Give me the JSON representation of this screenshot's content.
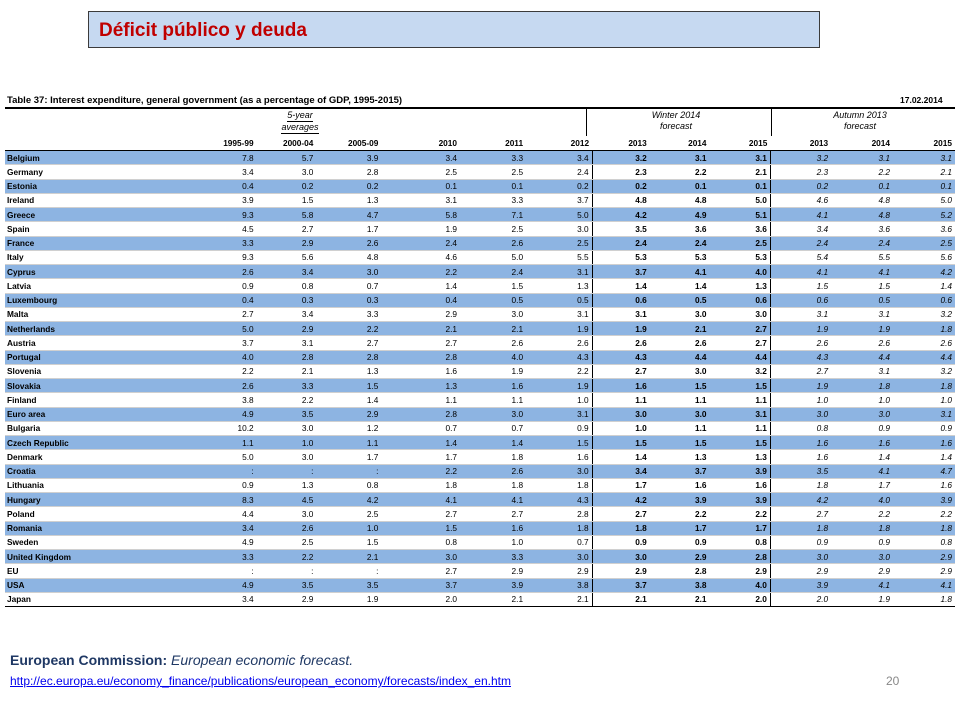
{
  "title": "Déficit público y deuda",
  "table": {
    "caption": "Table 37:   Interest expenditure, general government (as a percentage of GDP, 1995-2015)",
    "date": "17.02.2014",
    "group_avg": [
      "5-year",
      "averages"
    ],
    "group_winter": [
      "Winter 2014",
      "forecast"
    ],
    "group_autumn": [
      "Autumn 2013",
      "forecast"
    ],
    "columns": [
      "1995-99",
      "2000-04",
      "2005-09",
      "2010",
      "2011",
      "2012",
      "2013",
      "2014",
      "2015",
      "2013",
      "2014",
      "2015"
    ],
    "rows": [
      {
        "name": "Belgium",
        "v": [
          "7.8",
          "5.7",
          "3.9",
          "3.4",
          "3.3",
          "3.4",
          "3.2",
          "3.1",
          "3.1",
          "3.2",
          "3.1",
          "3.1"
        ]
      },
      {
        "name": "Germany",
        "v": [
          "3.4",
          "3.0",
          "2.8",
          "2.5",
          "2.5",
          "2.4",
          "2.3",
          "2.2",
          "2.1",
          "2.3",
          "2.2",
          "2.1"
        ]
      },
      {
        "name": "Estonia",
        "v": [
          "0.4",
          "0.2",
          "0.2",
          "0.1",
          "0.1",
          "0.2",
          "0.2",
          "0.1",
          "0.1",
          "0.2",
          "0.1",
          "0.1"
        ]
      },
      {
        "name": "Ireland",
        "v": [
          "3.9",
          "1.5",
          "1.3",
          "3.1",
          "3.3",
          "3.7",
          "4.8",
          "4.8",
          "5.0",
          "4.6",
          "4.8",
          "5.0"
        ]
      },
      {
        "name": "Greece",
        "v": [
          "9.3",
          "5.8",
          "4.7",
          "5.8",
          "7.1",
          "5.0",
          "4.2",
          "4.9",
          "5.1",
          "4.1",
          "4.8",
          "5.2"
        ]
      },
      {
        "name": "Spain",
        "v": [
          "4.5",
          "2.7",
          "1.7",
          "1.9",
          "2.5",
          "3.0",
          "3.5",
          "3.6",
          "3.6",
          "3.4",
          "3.6",
          "3.6"
        ]
      },
      {
        "name": "France",
        "v": [
          "3.3",
          "2.9",
          "2.6",
          "2.4",
          "2.6",
          "2.5",
          "2.4",
          "2.4",
          "2.5",
          "2.4",
          "2.4",
          "2.5"
        ]
      },
      {
        "name": "Italy",
        "v": [
          "9.3",
          "5.6",
          "4.8",
          "4.6",
          "5.0",
          "5.5",
          "5.3",
          "5.3",
          "5.3",
          "5.4",
          "5.5",
          "5.6"
        ]
      },
      {
        "name": "Cyprus",
        "v": [
          "2.6",
          "3.4",
          "3.0",
          "2.2",
          "2.4",
          "3.1",
          "3.7",
          "4.1",
          "4.0",
          "4.1",
          "4.1",
          "4.2"
        ]
      },
      {
        "name": "Latvia",
        "v": [
          "0.9",
          "0.8",
          "0.7",
          "1.4",
          "1.5",
          "1.3",
          "1.4",
          "1.4",
          "1.3",
          "1.5",
          "1.5",
          "1.4"
        ]
      },
      {
        "name": "Luxembourg",
        "v": [
          "0.4",
          "0.3",
          "0.3",
          "0.4",
          "0.5",
          "0.5",
          "0.6",
          "0.5",
          "0.6",
          "0.6",
          "0.5",
          "0.6"
        ]
      },
      {
        "name": "Malta",
        "v": [
          "2.7",
          "3.4",
          "3.3",
          "2.9",
          "3.0",
          "3.1",
          "3.1",
          "3.0",
          "3.0",
          "3.1",
          "3.1",
          "3.2"
        ]
      },
      {
        "name": "Netherlands",
        "v": [
          "5.0",
          "2.9",
          "2.2",
          "2.1",
          "2.1",
          "1.9",
          "1.9",
          "2.1",
          "2.7",
          "1.9",
          "1.9",
          "1.8"
        ]
      },
      {
        "name": "Austria",
        "v": [
          "3.7",
          "3.1",
          "2.7",
          "2.7",
          "2.6",
          "2.6",
          "2.6",
          "2.6",
          "2.7",
          "2.6",
          "2.6",
          "2.6"
        ]
      },
      {
        "name": "Portugal",
        "v": [
          "4.0",
          "2.8",
          "2.8",
          "2.8",
          "4.0",
          "4.3",
          "4.3",
          "4.4",
          "4.4",
          "4.3",
          "4.4",
          "4.4"
        ]
      },
      {
        "name": "Slovenia",
        "v": [
          "2.2",
          "2.1",
          "1.3",
          "1.6",
          "1.9",
          "2.2",
          "2.7",
          "3.0",
          "3.2",
          "2.7",
          "3.1",
          "3.2"
        ]
      },
      {
        "name": "Slovakia",
        "v": [
          "2.6",
          "3.3",
          "1.5",
          "1.3",
          "1.6",
          "1.9",
          "1.6",
          "1.5",
          "1.5",
          "1.9",
          "1.8",
          "1.8"
        ]
      },
      {
        "name": "Finland",
        "v": [
          "3.8",
          "2.2",
          "1.4",
          "1.1",
          "1.1",
          "1.0",
          "1.1",
          "1.1",
          "1.1",
          "1.0",
          "1.0",
          "1.0"
        ]
      },
      {
        "name": "Euro area",
        "v": [
          "4.9",
          "3.5",
          "2.9",
          "2.8",
          "3.0",
          "3.1",
          "3.0",
          "3.0",
          "3.1",
          "3.0",
          "3.0",
          "3.1"
        ]
      },
      {
        "name": "Bulgaria",
        "v": [
          "10.2",
          "3.0",
          "1.2",
          "0.7",
          "0.7",
          "0.9",
          "1.0",
          "1.1",
          "1.1",
          "0.8",
          "0.9",
          "0.9"
        ]
      },
      {
        "name": "Czech Republic",
        "v": [
          "1.1",
          "1.0",
          "1.1",
          "1.4",
          "1.4",
          "1.5",
          "1.5",
          "1.5",
          "1.5",
          "1.6",
          "1.6",
          "1.6"
        ]
      },
      {
        "name": "Denmark",
        "v": [
          "5.0",
          "3.0",
          "1.7",
          "1.7",
          "1.8",
          "1.6",
          "1.4",
          "1.3",
          "1.3",
          "1.6",
          "1.4",
          "1.4"
        ]
      },
      {
        "name": "Croatia",
        "v": [
          ":",
          ":",
          ":",
          "2.2",
          "2.6",
          "3.0",
          "3.4",
          "3.7",
          "3.9",
          "3.5",
          "4.1",
          "4.7"
        ]
      },
      {
        "name": "Lithuania",
        "v": [
          "0.9",
          "1.3",
          "0.8",
          "1.8",
          "1.8",
          "1.8",
          "1.7",
          "1.6",
          "1.6",
          "1.8",
          "1.7",
          "1.6"
        ]
      },
      {
        "name": "Hungary",
        "v": [
          "8.3",
          "4.5",
          "4.2",
          "4.1",
          "4.1",
          "4.3",
          "4.2",
          "3.9",
          "3.9",
          "4.2",
          "4.0",
          "3.9"
        ]
      },
      {
        "name": "Poland",
        "v": [
          "4.4",
          "3.0",
          "2.5",
          "2.7",
          "2.7",
          "2.8",
          "2.7",
          "2.2",
          "2.2",
          "2.7",
          "2.2",
          "2.2"
        ]
      },
      {
        "name": "Romania",
        "v": [
          "3.4",
          "2.6",
          "1.0",
          "1.5",
          "1.6",
          "1.8",
          "1.8",
          "1.7",
          "1.7",
          "1.8",
          "1.8",
          "1.8"
        ]
      },
      {
        "name": "Sweden",
        "v": [
          "4.9",
          "2.5",
          "1.5",
          "0.8",
          "1.0",
          "0.7",
          "0.9",
          "0.9",
          "0.8",
          "0.9",
          "0.9",
          "0.8"
        ]
      },
      {
        "name": "United Kingdom",
        "v": [
          "3.3",
          "2.2",
          "2.1",
          "3.0",
          "3.3",
          "3.0",
          "3.0",
          "2.9",
          "2.8",
          "3.0",
          "3.0",
          "2.9"
        ]
      },
      {
        "name": "EU",
        "v": [
          ":",
          ":",
          ":",
          "2.7",
          "2.9",
          "2.9",
          "2.9",
          "2.8",
          "2.9",
          "2.9",
          "2.9",
          "2.9"
        ]
      },
      {
        "name": "USA",
        "v": [
          "4.9",
          "3.5",
          "3.5",
          "3.7",
          "3.9",
          "3.8",
          "3.7",
          "3.8",
          "4.0",
          "3.9",
          "4.1",
          "4.1"
        ]
      },
      {
        "name": "Japan",
        "v": [
          "3.4",
          "2.9",
          "1.9",
          "2.0",
          "2.1",
          "2.1",
          "2.1",
          "2.1",
          "2.0",
          "2.0",
          "1.9",
          "1.8"
        ]
      }
    ]
  },
  "source": {
    "org": "European Commission:",
    "publication": "European economic forecast.",
    "url": "http://ec.europa.eu/economy_finance/publications/european_economy/forecasts/index_en.htm"
  },
  "page_number": "20",
  "colors": {
    "title_text": "#c00000",
    "title_box": "#c6d9f1",
    "row_highlight": "#8db4e2",
    "link": "#0000ee"
  }
}
